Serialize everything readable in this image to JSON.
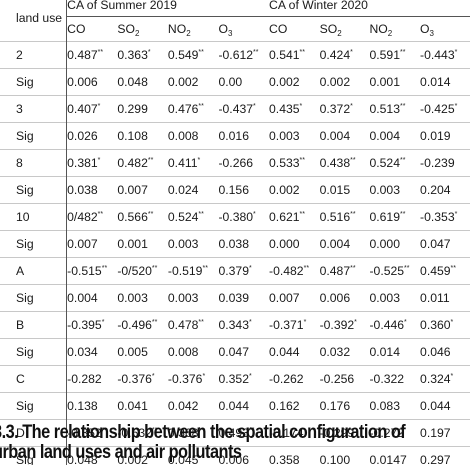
{
  "table": {
    "header_col": "land use",
    "groups": [
      "CA of Summer 2019",
      "CA of Winter 2020"
    ],
    "pollutants": [
      {
        "base": "CO",
        "sub": ""
      },
      {
        "base": "SO",
        "sub": "2"
      },
      {
        "base": "NO",
        "sub": "2"
      },
      {
        "base": "O",
        "sub": "3"
      },
      {
        "base": "CO",
        "sub": ""
      },
      {
        "base": "SO",
        "sub": "2"
      },
      {
        "base": "NO",
        "sub": "2"
      },
      {
        "base": "O",
        "sub": "3"
      }
    ],
    "rows": [
      {
        "label": "2",
        "cells": [
          [
            "0.487",
            "**"
          ],
          [
            "0.363",
            "*"
          ],
          [
            "0.549",
            "**"
          ],
          [
            "-0.612",
            "**"
          ],
          [
            "0.541",
            "**"
          ],
          [
            "0.424",
            "*"
          ],
          [
            "0.591",
            "**"
          ],
          [
            "-0.443",
            "*"
          ]
        ]
      },
      {
        "label": "Sig",
        "cells": [
          [
            "0.006",
            ""
          ],
          [
            "0.048",
            ""
          ],
          [
            "0.002",
            ""
          ],
          [
            "0.00",
            ""
          ],
          [
            "0.002",
            ""
          ],
          [
            "0.002",
            ""
          ],
          [
            "0.001",
            ""
          ],
          [
            "0.014",
            ""
          ]
        ]
      },
      {
        "label": "3",
        "cells": [
          [
            "0.407",
            "*"
          ],
          [
            "0.299",
            ""
          ],
          [
            "0.476",
            "**"
          ],
          [
            "-0.437",
            "*"
          ],
          [
            "0.435",
            "*"
          ],
          [
            "0.372",
            "*"
          ],
          [
            "0.513",
            "**"
          ],
          [
            "-0.425",
            "*"
          ]
        ]
      },
      {
        "label": "Sig",
        "cells": [
          [
            "0.026",
            ""
          ],
          [
            "0.108",
            ""
          ],
          [
            "0.008",
            ""
          ],
          [
            "0.016",
            ""
          ],
          [
            "0.003",
            ""
          ],
          [
            "0.004",
            ""
          ],
          [
            "0.004",
            ""
          ],
          [
            "0.019",
            ""
          ]
        ]
      },
      {
        "label": "8",
        "cells": [
          [
            "0.381",
            "*"
          ],
          [
            "0.482",
            "**"
          ],
          [
            "0.411",
            "*"
          ],
          [
            "-0.266",
            ""
          ],
          [
            "0.533",
            "**"
          ],
          [
            "0.438",
            "**"
          ],
          [
            "0.524",
            "**"
          ],
          [
            "-0.239",
            ""
          ]
        ]
      },
      {
        "label": "Sig",
        "cells": [
          [
            "0.038",
            ""
          ],
          [
            "0.007",
            ""
          ],
          [
            "0.024",
            ""
          ],
          [
            "0.156",
            ""
          ],
          [
            "0.002",
            ""
          ],
          [
            "0.015",
            ""
          ],
          [
            "0.003",
            ""
          ],
          [
            "0.204",
            ""
          ]
        ]
      },
      {
        "label": "10",
        "cells": [
          [
            "0/482",
            "**"
          ],
          [
            "0.566",
            "**"
          ],
          [
            "0.524",
            "**"
          ],
          [
            "-0.380",
            "*"
          ],
          [
            "0.621",
            "**"
          ],
          [
            "0.516",
            "**"
          ],
          [
            "0.619",
            "**"
          ],
          [
            "-0.353",
            "*"
          ]
        ]
      },
      {
        "label": "Sig",
        "cells": [
          [
            "0.007",
            ""
          ],
          [
            "0.001",
            ""
          ],
          [
            "0.003",
            ""
          ],
          [
            "0.038",
            ""
          ],
          [
            "0.000",
            ""
          ],
          [
            "0.004",
            ""
          ],
          [
            "0.000",
            ""
          ],
          [
            "0.047",
            ""
          ]
        ]
      },
      {
        "label": "A",
        "cells": [
          [
            "-0.515",
            "**"
          ],
          [
            "-0/520",
            "**"
          ],
          [
            "-0.519",
            "**"
          ],
          [
            "0.379",
            "*"
          ],
          [
            "-0.482",
            "**"
          ],
          [
            "0.487",
            "**"
          ],
          [
            "-0.525",
            "**"
          ],
          [
            "0.459",
            "**"
          ]
        ]
      },
      {
        "label": "Sig",
        "cells": [
          [
            "0.004",
            ""
          ],
          [
            "0.003",
            ""
          ],
          [
            "0.003",
            ""
          ],
          [
            "0.039",
            ""
          ],
          [
            "0.007",
            ""
          ],
          [
            "0.006",
            ""
          ],
          [
            "0.003",
            ""
          ],
          [
            "0.011",
            ""
          ]
        ]
      },
      {
        "label": "B",
        "cells": [
          [
            "-0.395",
            "*"
          ],
          [
            "-0.496",
            "**"
          ],
          [
            "0.478",
            "**"
          ],
          [
            "0.343",
            "*"
          ],
          [
            "-0.371",
            "*"
          ],
          [
            "-0.392",
            "*"
          ],
          [
            "-0.446",
            "*"
          ],
          [
            "0.360",
            "*"
          ]
        ]
      },
      {
        "label": "Sig",
        "cells": [
          [
            "0.034",
            ""
          ],
          [
            "0.005",
            ""
          ],
          [
            "0.008",
            ""
          ],
          [
            "0.047",
            ""
          ],
          [
            "0.044",
            ""
          ],
          [
            "0.032",
            ""
          ],
          [
            "0.014",
            ""
          ],
          [
            "0.046",
            ""
          ]
        ]
      },
      {
        "label": "C",
        "cells": [
          [
            "-0.282",
            ""
          ],
          [
            "-0.376",
            "*"
          ],
          [
            "-0.376",
            "*"
          ],
          [
            "0.352",
            "*"
          ],
          [
            "-0.262",
            ""
          ],
          [
            "-0.256",
            ""
          ],
          [
            "-0.322",
            ""
          ],
          [
            "0.324",
            "*"
          ]
        ]
      },
      {
        "label": "Sig",
        "cells": [
          [
            "0.138",
            ""
          ],
          [
            "0.041",
            ""
          ],
          [
            "0.042",
            ""
          ],
          [
            "0.044",
            ""
          ],
          [
            "0.162",
            ""
          ],
          [
            "0.176",
            ""
          ],
          [
            "0.083",
            ""
          ],
          [
            "0.044",
            ""
          ]
        ]
      },
      {
        "label": "D",
        "cells": [
          [
            "-0.352",
            "*"
          ],
          [
            "-0.532",
            "**"
          ],
          [
            "0.368",
            "*"
          ],
          [
            "0.493",
            "**"
          ],
          [
            "-0.174",
            ""
          ],
          [
            "-0.299",
            ""
          ],
          [
            "-0.272",
            ""
          ],
          [
            "0.197",
            ""
          ]
        ]
      },
      {
        "label": "Sig",
        "cells": [
          [
            "0.048",
            ""
          ],
          [
            "0.002",
            ""
          ],
          [
            "0.045",
            ""
          ],
          [
            "0.006",
            ""
          ],
          [
            "0.358",
            ""
          ],
          [
            "0.100",
            ""
          ],
          [
            "0.0147",
            ""
          ],
          [
            "0.297",
            ""
          ]
        ]
      }
    ]
  },
  "caption": {
    "line1": "3.3. The relationship between the spatial configuration of",
    "line2": "urban land uses and air pollutants"
  }
}
